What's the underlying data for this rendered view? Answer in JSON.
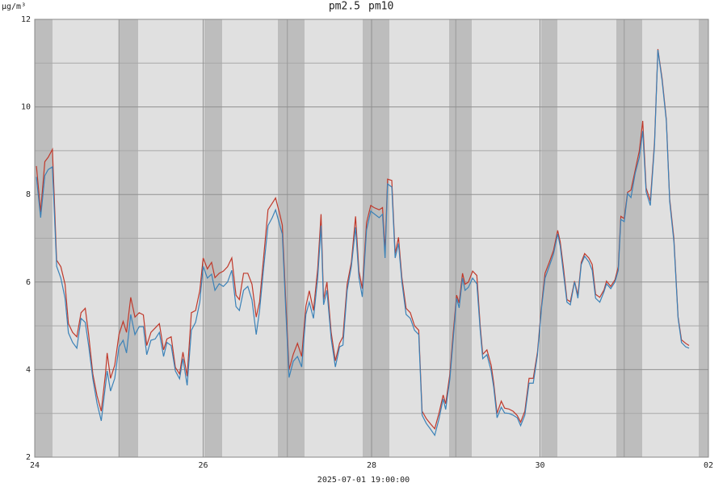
{
  "chart_data": {
    "type": "line",
    "legend": "top",
    "y_label": "µg/m³",
    "footer": "2025-07-01 19:00:00",
    "xlim": [
      24,
      32
    ],
    "xticks": [
      24,
      26,
      28,
      30,
      {
        "value": 32,
        "label": "02"
      }
    ],
    "xgrid_minor": [
      25,
      27,
      29,
      31
    ],
    "ylim": [
      2,
      12
    ],
    "yticks": [
      2,
      4,
      6,
      8,
      10,
      12
    ],
    "ygrid_minor": [
      3,
      5,
      7,
      9,
      11
    ],
    "grid": true,
    "x": [
      24.02,
      24.07,
      24.12,
      24.16,
      24.21,
      24.26,
      24.31,
      24.36,
      24.4,
      24.45,
      24.5,
      24.55,
      24.6,
      24.64,
      24.69,
      24.74,
      24.79,
      24.84,
      24.86,
      24.9,
      24.95,
      25.0,
      25.05,
      25.09,
      25.14,
      25.19,
      25.24,
      25.29,
      25.33,
      25.38,
      25.43,
      25.48,
      25.53,
      25.57,
      25.62,
      25.67,
      25.72,
      25.76,
      25.81,
      25.86,
      25.91,
      25.96,
      26.0,
      26.05,
      26.1,
      26.14,
      26.19,
      26.24,
      26.29,
      26.34,
      26.39,
      26.43,
      26.48,
      26.53,
      26.58,
      26.63,
      26.67,
      26.72,
      26.77,
      26.82,
      26.86,
      26.91,
      26.94,
      26.98,
      27.02,
      27.07,
      27.12,
      27.17,
      27.22,
      27.26,
      27.31,
      27.36,
      27.4,
      27.43,
      27.47,
      27.52,
      27.57,
      27.62,
      27.66,
      27.71,
      27.76,
      27.81,
      27.85,
      27.89,
      27.94,
      27.99,
      28.03,
      28.09,
      28.13,
      28.16,
      28.19,
      28.24,
      28.28,
      28.32,
      28.36,
      28.41,
      28.46,
      28.51,
      28.56,
      28.6,
      28.65,
      28.7,
      28.75,
      28.8,
      28.85,
      28.88,
      28.93,
      28.97,
      29.01,
      29.04,
      29.08,
      29.11,
      29.15,
      29.2,
      29.25,
      29.29,
      29.32,
      29.37,
      29.42,
      29.45,
      29.49,
      29.54,
      29.58,
      29.63,
      29.68,
      29.73,
      29.77,
      29.82,
      29.87,
      29.92,
      29.97,
      30.02,
      30.06,
      30.11,
      30.16,
      30.21,
      30.24,
      30.28,
      30.32,
      30.36,
      30.41,
      30.45,
      30.49,
      30.53,
      30.58,
      30.62,
      30.66,
      30.71,
      30.76,
      30.79,
      30.84,
      30.89,
      30.93,
      30.96,
      31.0,
      31.04,
      31.08,
      31.13,
      31.18,
      31.22,
      31.26,
      31.31,
      31.36,
      31.4,
      31.45,
      31.5,
      31.54,
      31.59,
      31.64,
      31.68,
      31.73,
      31.77
    ],
    "series": [
      {
        "name": "pm2.5",
        "color": "#3b82b8",
        "values": [
          8.4,
          7.47,
          8.43,
          8.57,
          8.63,
          6.36,
          6.09,
          5.63,
          4.84,
          4.62,
          4.49,
          5.17,
          5.08,
          4.55,
          3.79,
          3.23,
          2.83,
          3.64,
          3.97,
          3.51,
          3.8,
          4.52,
          4.67,
          4.38,
          5.26,
          4.8,
          4.98,
          4.98,
          4.34,
          4.67,
          4.7,
          4.85,
          4.3,
          4.62,
          4.55,
          3.97,
          3.79,
          4.25,
          3.64,
          4.9,
          5.08,
          5.54,
          6.36,
          6.09,
          6.18,
          5.81,
          5.96,
          5.9,
          6.0,
          6.27,
          5.44,
          5.35,
          5.81,
          5.9,
          5.59,
          4.8,
          5.35,
          6.36,
          7.29,
          7.47,
          7.65,
          7.3,
          7.1,
          5.4,
          3.82,
          4.19,
          4.3,
          4.06,
          5.26,
          5.54,
          5.17,
          6.09,
          7.29,
          5.48,
          5.81,
          4.71,
          4.06,
          4.52,
          4.56,
          5.81,
          6.36,
          7.25,
          6.1,
          5.66,
          7.19,
          7.62,
          7.56,
          7.47,
          7.55,
          6.55,
          8.24,
          8.17,
          6.55,
          6.88,
          6.0,
          5.26,
          5.17,
          4.9,
          4.8,
          2.96,
          2.77,
          2.64,
          2.5,
          2.87,
          3.33,
          3.09,
          3.79,
          4.71,
          5.63,
          5.41,
          6.09,
          5.81,
          5.88,
          6.09,
          5.96,
          4.9,
          4.25,
          4.34,
          3.97,
          3.6,
          2.9,
          3.14,
          3.01,
          3.0,
          2.96,
          2.9,
          2.72,
          2.96,
          3.69,
          3.69,
          4.34,
          5.44,
          6.09,
          6.36,
          6.64,
          7.1,
          6.82,
          6.18,
          5.54,
          5.48,
          6.0,
          5.63,
          6.4,
          6.59,
          6.46,
          6.27,
          5.63,
          5.54,
          5.78,
          5.96,
          5.85,
          6.0,
          6.27,
          7.43,
          7.38,
          8.02,
          7.93,
          8.48,
          8.85,
          9.45,
          8.06,
          7.75,
          9.13,
          11.3,
          10.6,
          9.68,
          7.84,
          6.92,
          5.17,
          4.62,
          4.52,
          4.49
        ]
      },
      {
        "name": "pm10",
        "color": "#c0392b",
        "values": [
          8.65,
          7.6,
          8.75,
          8.85,
          9.03,
          6.5,
          6.35,
          5.95,
          5.05,
          4.85,
          4.75,
          5.3,
          5.4,
          4.8,
          3.9,
          3.4,
          3.05,
          3.9,
          4.38,
          3.8,
          4.1,
          4.8,
          5.1,
          4.85,
          5.65,
          5.2,
          5.3,
          5.25,
          4.55,
          4.85,
          4.95,
          5.05,
          4.45,
          4.7,
          4.75,
          4.05,
          3.9,
          4.4,
          3.85,
          5.3,
          5.35,
          5.8,
          6.55,
          6.3,
          6.45,
          6.1,
          6.2,
          6.25,
          6.35,
          6.55,
          5.7,
          5.6,
          6.2,
          6.2,
          5.95,
          5.2,
          5.55,
          6.6,
          7.65,
          7.8,
          7.92,
          7.55,
          7.3,
          5.6,
          4.0,
          4.35,
          4.6,
          4.3,
          5.45,
          5.8,
          5.35,
          6.3,
          7.55,
          5.6,
          6.0,
          4.85,
          4.2,
          4.6,
          4.75,
          5.95,
          6.45,
          7.5,
          6.25,
          5.85,
          7.35,
          7.75,
          7.7,
          7.65,
          7.7,
          6.7,
          8.35,
          8.32,
          6.65,
          7.02,
          6.1,
          5.4,
          5.3,
          5.0,
          4.9,
          3.05,
          2.88,
          2.76,
          2.65,
          3.0,
          3.42,
          3.22,
          3.9,
          4.85,
          5.7,
          5.52,
          6.2,
          5.95,
          6.0,
          6.25,
          6.15,
          5.0,
          4.35,
          4.45,
          4.1,
          3.7,
          3.0,
          3.28,
          3.12,
          3.1,
          3.05,
          2.95,
          2.8,
          3.05,
          3.8,
          3.8,
          4.4,
          5.5,
          6.2,
          6.45,
          6.72,
          7.18,
          6.92,
          6.3,
          5.6,
          5.55,
          6.02,
          5.7,
          6.45,
          6.65,
          6.55,
          6.4,
          5.72,
          5.65,
          5.82,
          6.02,
          5.9,
          6.05,
          6.35,
          7.5,
          7.45,
          8.05,
          8.1,
          8.55,
          9.0,
          9.68,
          8.15,
          7.85,
          9.2,
          11.32,
          10.65,
          9.72,
          7.9,
          7.0,
          5.2,
          4.68,
          4.6,
          4.55
        ]
      }
    ]
  }
}
